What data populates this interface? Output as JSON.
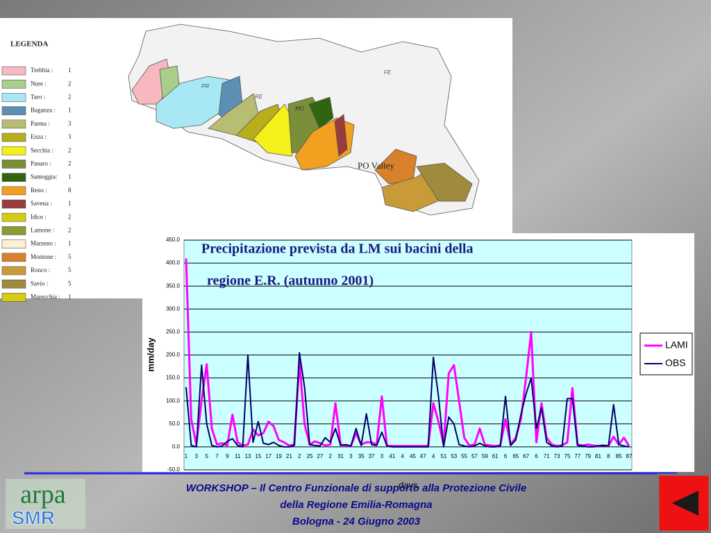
{
  "map": {
    "legend_title": "LEGENDA",
    "legend": [
      {
        "name": "Trebbia :",
        "count": "1",
        "color": "#f7b8c0"
      },
      {
        "name": "Nure :",
        "count": "2",
        "color": "#a9cf8a"
      },
      {
        "name": "Taro :",
        "count": "2",
        "color": "#a8e8f4"
      },
      {
        "name": "Baganza :",
        "count": "1",
        "color": "#5b8fb3"
      },
      {
        "name": "Parma :",
        "count": "3",
        "color": "#b7bd72"
      },
      {
        "name": "Enza :",
        "count": "3",
        "color": "#b8ad1a"
      },
      {
        "name": "Secchia :",
        "count": "2",
        "color": "#f4f01a"
      },
      {
        "name": "Panaro :",
        "count": "2",
        "color": "#7b8e38"
      },
      {
        "name": "Samoggia:",
        "count": "1",
        "color": "#2f6410"
      },
      {
        "name": "Reno :",
        "count": "8",
        "color": "#f2a020"
      },
      {
        "name": "Savena :",
        "count": "1",
        "color": "#9a3c3c"
      },
      {
        "name": "Idice :",
        "count": "2",
        "color": "#d6cc14"
      },
      {
        "name": "Lamone :",
        "count": "2",
        "color": "#8c9a30"
      },
      {
        "name": "Marzeno :",
        "count": "1",
        "color": "#fcefd4"
      },
      {
        "name": "Montone :",
        "count": "5",
        "color": "#d9802a"
      },
      {
        "name": "Ronco :",
        "count": "5",
        "color": "#c99a38"
      },
      {
        "name": "Savio :",
        "count": "5",
        "color": "#a08a3c"
      },
      {
        "name": "Marecchia :",
        "count": "1",
        "color": "#d8cc10"
      }
    ],
    "labels": [
      "PO Valley",
      "FE",
      "RE",
      "MO",
      "PR"
    ]
  },
  "chart_data": {
    "type": "line",
    "title": [
      "Precipitazione prevista da LM sui bacini della",
      "regione E.R. (autunno 2001)"
    ],
    "x_label": "days",
    "y_label": "mm/day",
    "categories": [
      "1",
      null,
      "3",
      null,
      "5",
      null,
      "7",
      null,
      "9",
      null,
      "11",
      null,
      "13",
      null,
      "15",
      null,
      "17",
      null,
      "19",
      null,
      "21",
      null,
      "2",
      null,
      "25",
      null,
      "27",
      null,
      "2",
      null,
      "31",
      null,
      "3",
      null,
      "35",
      null,
      "37",
      null,
      "3",
      null,
      "41",
      null,
      "4",
      null,
      "45",
      null,
      "47",
      null,
      "4",
      null,
      "51",
      null,
      "53",
      null,
      "55",
      null,
      "57",
      null,
      "59",
      null,
      "61",
      null,
      "6",
      null,
      "65",
      null,
      "67",
      null,
      "6",
      null,
      "71",
      null,
      "73",
      null,
      "75",
      null,
      "77",
      null,
      "79",
      null,
      "81",
      null,
      "8",
      null,
      "85",
      null,
      "87"
    ],
    "series": [
      {
        "name": "LAMI",
        "color": "#ff00ff",
        "values": [
          410,
          60,
          5,
          100,
          180,
          40,
          5,
          8,
          3,
          70,
          10,
          3,
          5,
          38,
          25,
          30,
          55,
          45,
          15,
          10,
          3,
          5,
          185,
          50,
          5,
          12,
          8,
          3,
          5,
          95,
          5,
          3,
          2,
          30,
          5,
          10,
          10,
          5,
          110,
          2,
          2,
          2,
          2,
          2,
          2,
          2,
          2,
          2,
          95,
          55,
          5,
          160,
          178,
          100,
          20,
          3,
          5,
          40,
          5,
          3,
          2,
          3,
          60,
          5,
          20,
          60,
          150,
          250,
          10,
          95,
          20,
          5,
          2,
          3,
          10,
          128,
          5,
          3,
          5,
          3,
          2,
          3,
          2,
          22,
          5,
          20,
          2
        ]
      },
      {
        "name": "OBS",
        "color": "#000066",
        "values": [
          130,
          3,
          0,
          178,
          50,
          3,
          0,
          2,
          12,
          18,
          3,
          0,
          200,
          10,
          55,
          8,
          5,
          10,
          3,
          0,
          0,
          3,
          205,
          130,
          5,
          3,
          2,
          20,
          10,
          40,
          3,
          5,
          2,
          40,
          3,
          72,
          5,
          3,
          32,
          2,
          0,
          0,
          0,
          0,
          0,
          0,
          0,
          0,
          195,
          110,
          0,
          65,
          50,
          5,
          2,
          0,
          2,
          8,
          2,
          0,
          0,
          2,
          110,
          3,
          15,
          70,
          115,
          150,
          40,
          85,
          10,
          2,
          0,
          2,
          105,
          105,
          3,
          2,
          0,
          0,
          2,
          3,
          2,
          92,
          5,
          2,
          0
        ]
      }
    ],
    "ylim": [
      -50,
      450
    ],
    "yticks": [
      {
        "value": -50,
        "label": "-50.0"
      },
      {
        "value": 0,
        "label": "0.0"
      },
      {
        "value": 50,
        "label": "50.0"
      },
      {
        "value": 100,
        "label": "100.0"
      },
      {
        "value": 150,
        "label": "150.0"
      },
      {
        "value": 200,
        "label": "200.0"
      },
      {
        "value": 250,
        "label": "250.0"
      },
      {
        "value": 300,
        "label": "300.0"
      },
      {
        "value": 350,
        "label": "350.0"
      },
      {
        "value": 400,
        "label": "400.0"
      },
      {
        "value": 450,
        "label": "450.0"
      }
    ],
    "grid": true,
    "legend_position": "right"
  },
  "footer": {
    "lines": [
      "WORKSHOP – Il Centro Funzionale di supporto alla Protezione Civile",
      "della Regione Emilia-Romagna",
      "Bologna  -  24 Giugno 2003"
    ],
    "logo_top": "arpa",
    "logo_bottom": "SMR"
  }
}
